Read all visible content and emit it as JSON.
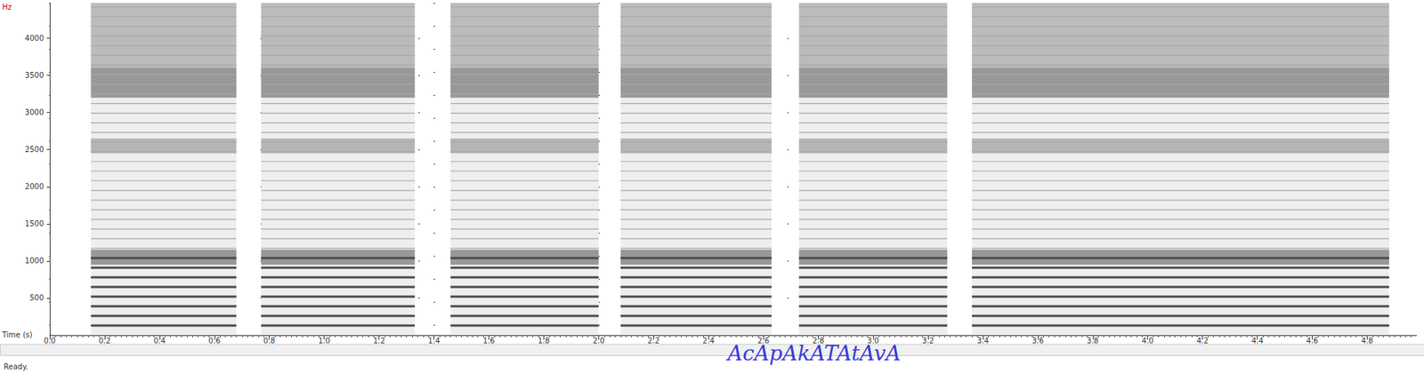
{
  "chart_data": {
    "type": "spectrogram",
    "x_label": "Time (s)",
    "y_label": "Hz",
    "caption": "AcApAkATAtAvA",
    "status": "Ready.",
    "xlim": [
      0,
      4.98
    ],
    "ylim": [
      0,
      4475
    ],
    "xticks": [
      {
        "value": 0,
        "label": "0.0"
      },
      0.2,
      0.4,
      0.6,
      0.8,
      {
        "value": 1,
        "label": "1.0"
      },
      1.2,
      1.4,
      1.6,
      1.8,
      {
        "value": 2,
        "label": "2.0"
      },
      2.2,
      2.4,
      2.6,
      2.8,
      {
        "value": 3,
        "label": "3.0"
      },
      3.2,
      3.4,
      3.6,
      3.8,
      {
        "value": 4,
        "label": "4.0"
      },
      4.2,
      4.4,
      4.6,
      4.8
    ],
    "yticks": [
      500,
      1000,
      1500,
      2000,
      2500,
      3000,
      3500,
      4000
    ],
    "grid": true,
    "segments": [
      [
        0.15,
        0.68
      ],
      [
        0.77,
        1.33
      ],
      [
        1.46,
        2.0
      ],
      [
        2.08,
        2.63
      ],
      [
        2.73,
        3.27
      ],
      [
        3.36,
        4.88
      ]
    ],
    "f0": 130,
    "bands": [
      {
        "low": 950,
        "high": 1150,
        "intensity": 0.6
      },
      {
        "low": 2450,
        "high": 2650,
        "intensity": 0.4
      },
      {
        "low": 3200,
        "high": 3600,
        "intensity": 0.6
      },
      {
        "low": 3600,
        "high": 4475,
        "intensity": 0.35
      }
    ]
  }
}
